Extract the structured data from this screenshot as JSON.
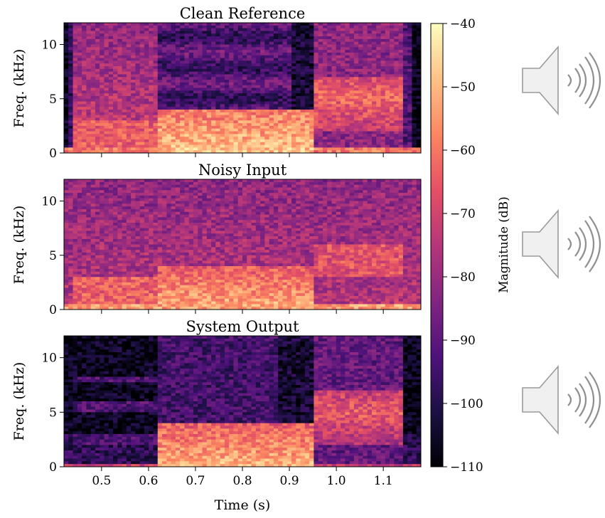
{
  "chart_data": [
    {
      "type": "heatmap",
      "title": "Clean Reference",
      "ylabel": "Freq. (kHz)",
      "yticks": [
        0,
        5,
        10
      ],
      "ylim": [
        0,
        12
      ],
      "xlim": [
        0.42,
        1.18
      ],
      "profile": "clean"
    },
    {
      "type": "heatmap",
      "title": "Noisy Input",
      "ylabel": "Freq. (kHz)",
      "yticks": [
        0,
        5,
        10
      ],
      "ylim": [
        0,
        12
      ],
      "xlim": [
        0.42,
        1.18
      ],
      "profile": "noisy"
    },
    {
      "type": "heatmap",
      "title": "System Output",
      "ylabel": "Freq. (kHz)",
      "yticks": [
        0,
        5,
        10
      ],
      "ylim": [
        0,
        12
      ],
      "xlim": [
        0.42,
        1.18
      ],
      "xlabel": "Time (s)",
      "xticks": [
        "0.5",
        "0.6",
        "0.7",
        "0.8",
        "0.9",
        "1.0",
        "1.1"
      ],
      "profile": "output"
    }
  ],
  "colorbar": {
    "label": "Magnitude (dB)",
    "ticks": [
      "−40",
      "−50",
      "−60",
      "−70",
      "−80",
      "−90",
      "−100",
      "−110"
    ],
    "range": [
      -110,
      -40
    ],
    "colormap": [
      "#000004",
      "#1c1044",
      "#4f127b",
      "#812581",
      "#b5367a",
      "#e55064",
      "#fb8761",
      "#fec287",
      "#fcfdbf"
    ]
  },
  "audio_icons": [
    "speaker-icon",
    "speaker-icon",
    "speaker-icon"
  ]
}
